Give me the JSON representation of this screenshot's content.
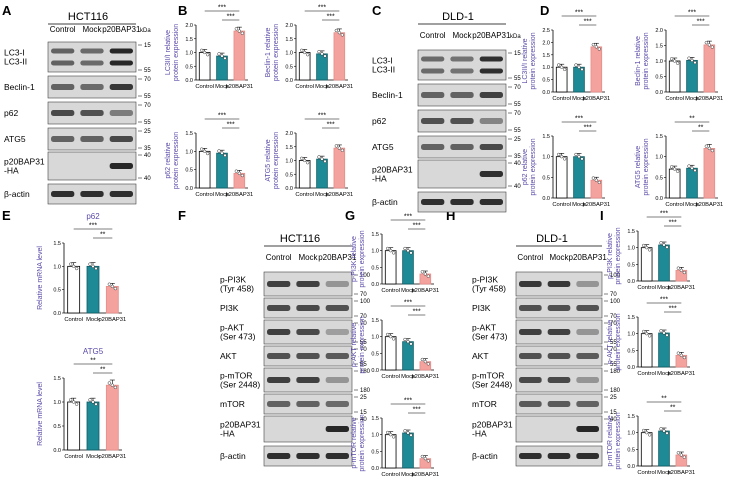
{
  "colors": {
    "control": "#ffffff",
    "mock": "#1e8a96",
    "p20": "#f4a29e",
    "purple": "#5b4aa8",
    "label": "#000000"
  },
  "panels": {
    "A": {
      "letter": "A",
      "title": "HCT116",
      "lanes": [
        "Control",
        "Mock",
        "p20BAP31"
      ],
      "rows": [
        "LC3-I\nLC3-II",
        "Beclin-1",
        "p62",
        "ATG5",
        "p20BAP31\n-HA",
        "β-actin"
      ],
      "kda_unit": "kDa",
      "markers": [
        "15",
        "55",
        "70",
        "55",
        "70",
        "55",
        "25",
        "35",
        "40",
        "40"
      ]
    },
    "B": {
      "letter": "B"
    },
    "C": {
      "letter": "C",
      "title": "DLD-1",
      "lanes": [
        "Control",
        "Mock",
        "p20BAP31"
      ],
      "rows": [
        "LC3-I\nLC3-II",
        "Beclin-1",
        "p62",
        "ATG5",
        "p20BAP31\n-HA",
        "β-actin"
      ],
      "kda_unit": "kDa",
      "markers": [
        "15",
        "55",
        "70",
        "55",
        "70",
        "55",
        "25",
        "35",
        "40",
        "40"
      ]
    },
    "D": {
      "letter": "D"
    },
    "E": {
      "letter": "E"
    },
    "F": {
      "letter": "F",
      "title": "HCT116",
      "lanes": [
        "Control",
        "Mock",
        "p20BAP31"
      ],
      "rows": [
        "p-PI3K\n(Tyr 458)",
        "PI3K",
        "p-AKT\n(Ser 473)",
        "AKT",
        "p-mTOR\n(Ser 2448)",
        "mTOR",
        "p20BAP31\n-HA",
        "β-actin"
      ],
      "markers": [
        "100",
        "70",
        "100",
        "70",
        "70",
        "55",
        "70",
        "55",
        "180",
        "180",
        "25",
        "15",
        "40"
      ]
    },
    "G": {
      "letter": "G"
    },
    "H": {
      "letter": "H",
      "title": "DLD-1",
      "lanes": [
        "Control",
        "Mock",
        "p20BAP31"
      ],
      "rows": [
        "p-PI3K\n(Tyr 458)",
        "PI3K",
        "p-AKT\n(Ser 473)",
        "AKT",
        "p-mTOR\n(Ser 2448)",
        "mTOR",
        "p20BAP31\n-HA",
        "β-actin"
      ],
      "markers": [
        "100",
        "70",
        "100",
        "70",
        "70",
        "55",
        "70",
        "55",
        "180",
        "180",
        "25",
        "15",
        "40"
      ]
    },
    "I": {
      "letter": "I"
    }
  },
  "chart_data": [
    {
      "id": "B1",
      "type": "bar",
      "ylabel": "LC3II/I relative\nprotein expression",
      "ylim": [
        0,
        2.0
      ],
      "yticks": [
        "0.0",
        "0.5",
        "1.0",
        "1.5",
        "2.0"
      ],
      "categories": [
        "Control",
        "Mock",
        "p20BAP31"
      ],
      "values": [
        1.0,
        0.87,
        1.78
      ],
      "sig": [
        "***",
        "***"
      ]
    },
    {
      "id": "B2",
      "type": "bar",
      "ylabel": "Beclin-1 relative\nprotein expression",
      "ylim": [
        0,
        2.0
      ],
      "yticks": [
        "0.0",
        "0.5",
        "1.0",
        "1.5",
        "2.0"
      ],
      "categories": [
        "Control",
        "Mock",
        "p20BAP31"
      ],
      "values": [
        1.0,
        0.95,
        1.72
      ],
      "sig": [
        "***",
        "***"
      ]
    },
    {
      "id": "B3",
      "type": "bar",
      "ylabel": "p62 relative\nprotein expression",
      "ylim": [
        0,
        1.5
      ],
      "yticks": [
        "0.0",
        "0.5",
        "1.0",
        "1.5"
      ],
      "categories": [
        "Control",
        "Mock",
        "p20BAP31"
      ],
      "values": [
        1.0,
        0.95,
        0.4
      ],
      "sig": [
        "***",
        "***"
      ]
    },
    {
      "id": "B4",
      "type": "bar",
      "ylabel": "ATG5 relative\nprotein expression",
      "ylim": [
        0,
        2.0
      ],
      "yticks": [
        "0.0",
        "0.5",
        "1.0",
        "1.5",
        "2.0"
      ],
      "categories": [
        "Control",
        "Mock",
        "p20BAP31"
      ],
      "values": [
        1.0,
        1.05,
        1.45
      ],
      "sig": [
        "***",
        "***"
      ]
    },
    {
      "id": "D1",
      "type": "bar",
      "ylabel": "LC3II/I relative\nprotein expression",
      "ylim": [
        0,
        2.5
      ],
      "yticks": [
        "0.0",
        "0.5",
        "1.0",
        "1.5",
        "2.0",
        "2.5"
      ],
      "categories": [
        "Control",
        "Mock",
        "p20BAP31"
      ],
      "values": [
        1.0,
        1.0,
        1.82
      ],
      "sig": [
        "***",
        "***"
      ]
    },
    {
      "id": "D2",
      "type": "bar",
      "ylabel": "Beclin-1 relative\nprotein expression",
      "ylim": [
        0,
        2.0
      ],
      "yticks": [
        "0.0",
        "0.5",
        "1.0",
        "1.5",
        "2.0"
      ],
      "categories": [
        "Control",
        "Mock",
        "p20BAP31"
      ],
      "values": [
        1.0,
        1.02,
        1.52
      ],
      "sig": [
        "***",
        "***"
      ]
    },
    {
      "id": "D3",
      "type": "bar",
      "ylabel": "p62 relative\nprotein expression",
      "ylim": [
        0,
        1.5
      ],
      "yticks": [
        "0.0",
        "0.5",
        "1.0",
        "1.5"
      ],
      "categories": [
        "Control",
        "Mock",
        "p20BAP31"
      ],
      "values": [
        1.0,
        1.0,
        0.43
      ],
      "sig": [
        "***",
        "***"
      ]
    },
    {
      "id": "D4",
      "type": "bar",
      "ylabel": "ATG5 relative\nprotein expression",
      "ylim": [
        0,
        1.5
      ],
      "yticks": [
        "0.0",
        "0.5",
        "1.0",
        "1.5"
      ],
      "categories": [
        "Control",
        "Mock",
        "p20BAP31"
      ],
      "values": [
        0.7,
        0.72,
        1.2
      ],
      "sig": [
        "**",
        "**"
      ]
    },
    {
      "id": "E1",
      "type": "bar",
      "title": "p62",
      "ylabel": "Relative mRNA level",
      "ylim": [
        0,
        1.5
      ],
      "yticks": [
        "0.0",
        "0.5",
        "1.0",
        "1.5"
      ],
      "categories": [
        "Control",
        "Mock",
        "p20BAP31"
      ],
      "values": [
        1.0,
        1.0,
        0.57
      ],
      "sig": [
        "***",
        "**"
      ]
    },
    {
      "id": "E2",
      "type": "bar",
      "title": "ATG5",
      "ylabel": "Relative mRNA level",
      "ylim": [
        0,
        1.5
      ],
      "yticks": [
        "0.0",
        "0.5",
        "1.0",
        "1.5"
      ],
      "categories": [
        "Control",
        "Mock",
        "p20BAP31"
      ],
      "values": [
        1.0,
        1.0,
        1.35
      ],
      "sig": [
        "**",
        "**"
      ]
    },
    {
      "id": "G1",
      "type": "bar",
      "ylabel": "p-PI3K relative\nprotein expression",
      "ylim": [
        0,
        1.5
      ],
      "yticks": [
        "0.0",
        "0.5",
        "1.0",
        "1.5"
      ],
      "categories": [
        "Control",
        "Mock",
        "p20BAP31"
      ],
      "values": [
        1.0,
        1.0,
        0.3
      ],
      "sig": [
        "***",
        "***"
      ]
    },
    {
      "id": "G2",
      "type": "bar",
      "ylabel": "p-AKT relative\nprotein expression",
      "ylim": [
        0,
        1.5
      ],
      "yticks": [
        "0.0",
        "0.5",
        "1.0",
        "1.5"
      ],
      "categories": [
        "Control",
        "Mock",
        "p20BAP31"
      ],
      "values": [
        1.0,
        0.85,
        0.25
      ],
      "sig": [
        "***",
        "***"
      ]
    },
    {
      "id": "G3",
      "type": "bar",
      "ylabel": "p-mTOR relative\nprotein expression",
      "ylim": [
        0,
        1.5
      ],
      "yticks": [
        "0.0",
        "0.5",
        "1.0",
        "1.5"
      ],
      "categories": [
        "Control",
        "Mock",
        "p20BAP31"
      ],
      "values": [
        1.0,
        1.05,
        0.28
      ],
      "sig": [
        "***",
        "***"
      ]
    },
    {
      "id": "I1",
      "type": "bar",
      "ylabel": "p-PI3K relative\nprotein expression",
      "ylim": [
        0,
        1.5
      ],
      "yticks": [
        "0.0",
        "0.5",
        "1.0",
        "1.5"
      ],
      "categories": [
        "Control",
        "Mock",
        "p20BAP31"
      ],
      "values": [
        1.0,
        1.08,
        0.32
      ],
      "sig": [
        "***",
        "***"
      ]
    },
    {
      "id": "I2",
      "type": "bar",
      "ylabel": "p-AKT relative\nprotein expression",
      "ylim": [
        0,
        1.5
      ],
      "yticks": [
        "0.0",
        "0.5",
        "1.0",
        "1.5"
      ],
      "categories": [
        "Control",
        "Mock",
        "p20BAP31"
      ],
      "values": [
        1.0,
        1.02,
        0.35
      ],
      "sig": [
        "***",
        "***"
      ]
    },
    {
      "id": "I3",
      "type": "bar",
      "ylabel": "p-mTOR relative\nprotein expression",
      "ylim": [
        0,
        1.5
      ],
      "yticks": [
        "0.0",
        "0.5",
        "1.0",
        "1.5"
      ],
      "categories": [
        "Control",
        "Mock",
        "p20BAP31"
      ],
      "values": [
        1.0,
        1.05,
        0.33
      ],
      "sig": [
        "**",
        "**"
      ]
    }
  ]
}
